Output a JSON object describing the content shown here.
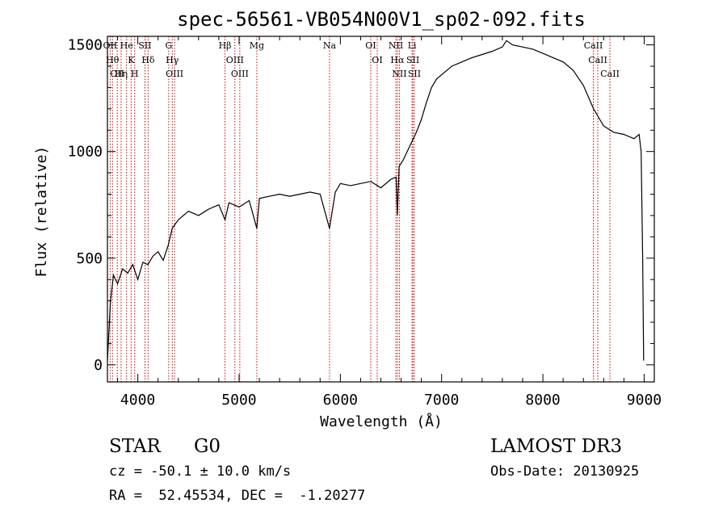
{
  "chart_data": {
    "type": "line",
    "title": "spec-56561-VB054N00V1_sp02-092.fits",
    "xlabel": "Wavelength (Å)",
    "ylabel": "Flux (relative)",
    "xlim": [
      3700,
      9100
    ],
    "ylim": [
      -80,
      1540
    ],
    "xticks": [
      4000,
      5000,
      6000,
      7000,
      8000,
      9000
    ],
    "yticks": [
      0,
      500,
      1000,
      1500
    ],
    "series": [
      {
        "name": "flux",
        "x": [
          3700,
          3730,
          3760,
          3800,
          3850,
          3900,
          3950,
          4000,
          4050,
          4100,
          4150,
          4200,
          4250,
          4300,
          4340,
          4400,
          4500,
          4600,
          4700,
          4800,
          4861,
          4900,
          5000,
          5100,
          5175,
          5200,
          5300,
          5400,
          5500,
          5600,
          5700,
          5800,
          5893,
          5950,
          6000,
          6100,
          6200,
          6300,
          6400,
          6500,
          6550,
          6563,
          6580,
          6620,
          6680,
          6750,
          6800,
          6850,
          6900,
          6950,
          7000,
          7100,
          7200,
          7300,
          7400,
          7500,
          7600,
          7640,
          7700,
          7800,
          7900,
          8000,
          8100,
          8200,
          8300,
          8400,
          8500,
          8600,
          8700,
          8800,
          8900,
          8950,
          8970,
          8985,
          8995
        ],
        "y": [
          20,
          300,
          420,
          380,
          450,
          430,
          470,
          400,
          480,
          470,
          510,
          530,
          490,
          560,
          640,
          680,
          720,
          700,
          730,
          750,
          680,
          760,
          740,
          770,
          640,
          780,
          790,
          800,
          790,
          800,
          810,
          800,
          640,
          810,
          850,
          840,
          850,
          860,
          830,
          870,
          880,
          700,
          930,
          960,
          1020,
          1090,
          1150,
          1230,
          1300,
          1340,
          1360,
          1400,
          1420,
          1440,
          1455,
          1470,
          1490,
          1520,
          1500,
          1490,
          1480,
          1460,
          1440,
          1420,
          1380,
          1310,
          1200,
          1120,
          1090,
          1080,
          1060,
          1080,
          1000,
          500,
          20
        ]
      }
    ],
    "lines": [
      {
        "name": "OII",
        "wave": 3727
      },
      {
        "name": "Hθ",
        "wave": 3750
      },
      {
        "name": "Hη",
        "wave": 3835
      },
      {
        "name": "OII",
        "wave": 3797
      },
      {
        "name": "He",
        "wave": 3889
      },
      {
        "name": "K",
        "wave": 3934
      },
      {
        "name": "H",
        "wave": 3969
      },
      {
        "name": "SII",
        "wave": 4071
      },
      {
        "name": "Hδ",
        "wave": 4102
      },
      {
        "name": "G",
        "wave": 4305
      },
      {
        "name": "Hγ",
        "wave": 4340
      },
      {
        "name": "OIII",
        "wave": 4363
      },
      {
        "name": "Hβ",
        "wave": 4861
      },
      {
        "name": "OIII",
        "wave": 4959
      },
      {
        "name": "OIII",
        "wave": 5007
      },
      {
        "name": "Mg",
        "wave": 5175
      },
      {
        "name": "Na",
        "wave": 5893
      },
      {
        "name": "OI",
        "wave": 6300
      },
      {
        "name": "OI",
        "wave": 6364
      },
      {
        "name": "NII",
        "wave": 6548
      },
      {
        "name": "Hα",
        "wave": 6563
      },
      {
        "name": "NII",
        "wave": 6583
      },
      {
        "name": "Li",
        "wave": 6708
      },
      {
        "name": "SII",
        "wave": 6716
      },
      {
        "name": "SII",
        "wave": 6731
      },
      {
        "name": "CaII",
        "wave": 8498
      },
      {
        "name": "CaII",
        "wave": 8542
      },
      {
        "name": "CaII",
        "wave": 8662
      }
    ]
  },
  "info": {
    "class": "STAR",
    "subclass": "G0",
    "survey": "LAMOST DR3",
    "cz": "cz = -50.1 ± 10.0 km/s",
    "obs_date": "Obs-Date: 20130925",
    "coords": "RA =  52.45534, DEC =  -1.20277"
  },
  "colors": {
    "line_marker": "#cc0000",
    "spectrum": "#000000"
  }
}
